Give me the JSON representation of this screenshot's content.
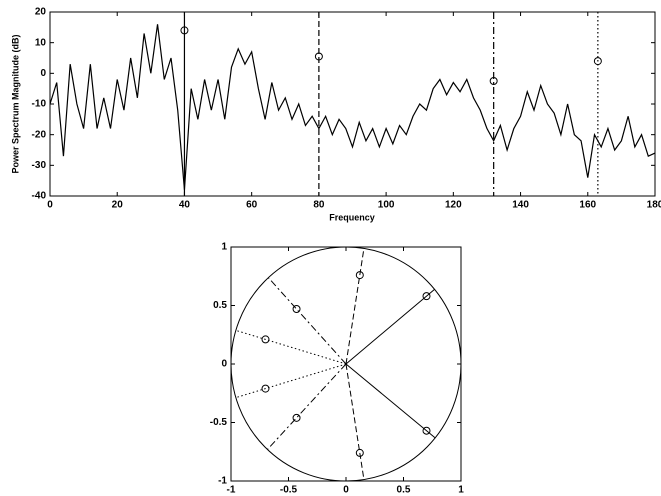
{
  "chart_data": [
    {
      "type": "line",
      "xlabel": "Frequency",
      "ylabel": "Power Spectrum Magnitude (dB)",
      "x": [
        0,
        2,
        4,
        6,
        8,
        10,
        12,
        14,
        16,
        18,
        20,
        22,
        24,
        26,
        28,
        30,
        32,
        34,
        36,
        38,
        40,
        42,
        44,
        46,
        48,
        50,
        52,
        54,
        56,
        58,
        60,
        62,
        64,
        66,
        68,
        70,
        72,
        74,
        76,
        78,
        80,
        82,
        84,
        86,
        88,
        90,
        92,
        94,
        96,
        98,
        100,
        102,
        104,
        106,
        108,
        110,
        112,
        114,
        116,
        118,
        120,
        122,
        124,
        126,
        128,
        130,
        132,
        134,
        136,
        138,
        140,
        142,
        144,
        146,
        148,
        150,
        152,
        154,
        156,
        158,
        160,
        162,
        164,
        166,
        168,
        170,
        172,
        174,
        176,
        178,
        180
      ],
      "series": [
        {
          "color": "#000000",
          "values": [
            -10,
            -3,
            -27,
            3,
            -10,
            -18,
            3,
            -18,
            -8,
            -18,
            -2,
            -12,
            5,
            -8,
            13,
            0,
            16,
            -2,
            5,
            -12,
            -38,
            -5,
            -15,
            -2,
            -12,
            -2,
            -15,
            2,
            8,
            3,
            7,
            -5,
            -15,
            -3,
            -12,
            -8,
            -15,
            -10,
            -17,
            -14,
            -18,
            -14,
            -20,
            -15,
            -18,
            -24,
            -16,
            -22,
            -18,
            -24,
            -18,
            -23,
            -17,
            -20,
            -14,
            -10,
            -12,
            -5,
            -2,
            -7,
            -3,
            -6,
            -2,
            -8,
            -12,
            -18,
            -22,
            -17,
            -25,
            -18,
            -14,
            -6,
            -12,
            -4,
            -10,
            -13,
            -20,
            -10,
            -20,
            -22,
            -34,
            -20,
            -24,
            -18,
            -25,
            -22,
            -14,
            -24,
            -20,
            -27,
            -26
          ]
        }
      ],
      "peaks": {
        "x": [
          40,
          80,
          132,
          163
        ],
        "values": [
          14,
          5.5,
          -2.5,
          4
        ],
        "linestyles": [
          "solid",
          "dashed",
          "dashdot",
          "dotted"
        ]
      },
      "xlim": [
        0,
        180
      ],
      "ylim": [
        -40,
        20
      ],
      "xticks": [
        0,
        20,
        40,
        60,
        80,
        100,
        120,
        140,
        160,
        180
      ],
      "yticks": [
        -40,
        -30,
        -20,
        -10,
        0,
        10,
        20
      ]
    },
    {
      "type": "scatter",
      "unit_circle": true,
      "series": [
        {
          "color": "#000000",
          "linestyle": "solid",
          "x": [
            0.7,
            0.7
          ],
          "values": [
            0.58,
            -0.57
          ]
        },
        {
          "color": "#000000",
          "linestyle": "dashed",
          "x": [
            0.12,
            0.12
          ],
          "values": [
            0.76,
            -0.76
          ]
        },
        {
          "color": "#000000",
          "linestyle": "dashdot",
          "x": [
            -0.43,
            -0.43
          ],
          "values": [
            0.47,
            -0.46
          ]
        },
        {
          "color": "#000000",
          "linestyle": "dotted",
          "x": [
            -0.7,
            -0.7
          ],
          "values": [
            0.21,
            -0.21
          ]
        }
      ],
      "xlim": [
        -1,
        1
      ],
      "ylim": [
        -1,
        1
      ],
      "xticks": [
        -1,
        -0.5,
        0,
        0.5,
        1
      ],
      "yticks": [
        -1,
        -0.5,
        0,
        0.5,
        1
      ]
    }
  ]
}
